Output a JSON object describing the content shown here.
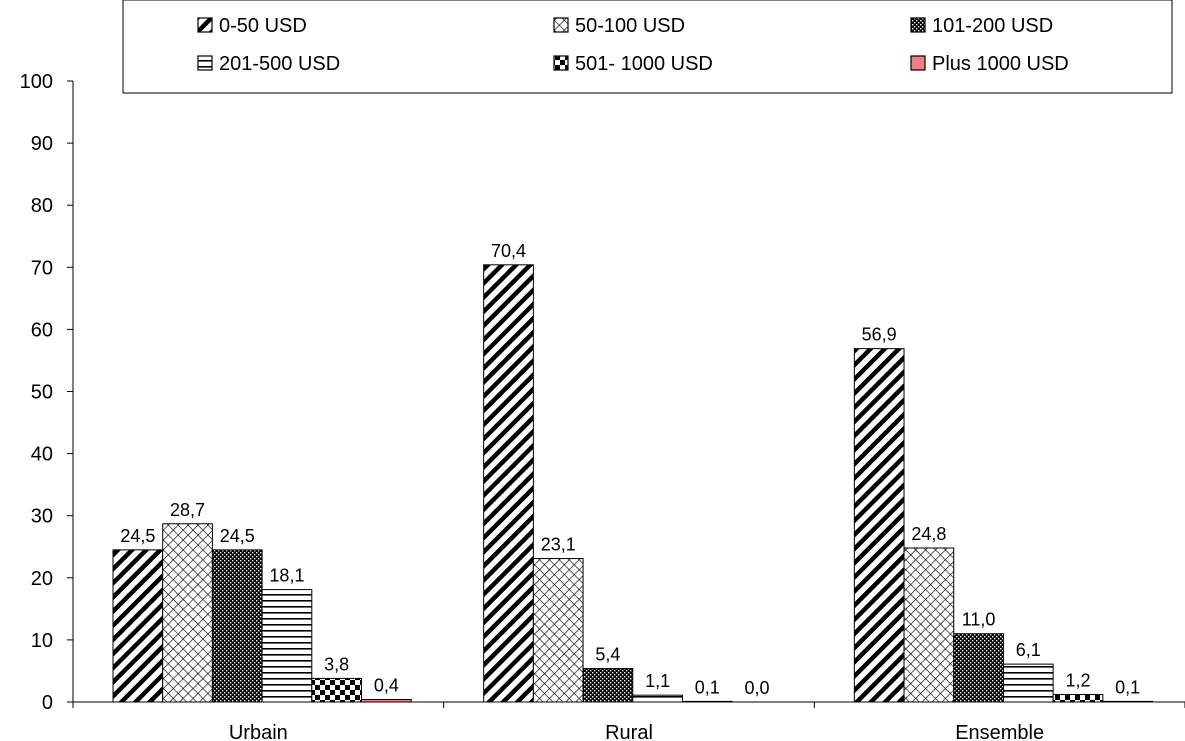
{
  "chart_data": {
    "type": "bar",
    "title": "",
    "xlabel": "",
    "ylabel": "",
    "ylim": [
      0,
      100
    ],
    "yticks": [
      0,
      10,
      20,
      30,
      40,
      50,
      60,
      70,
      80,
      90,
      100
    ],
    "grid": false,
    "legend_position": "top",
    "categories": [
      "Urbain",
      "Rural",
      "Ensemble"
    ],
    "series": [
      {
        "name": "0-50 USD",
        "pattern": "diagonal-hatch",
        "color": "#000000",
        "values": [
          24.5,
          70.4,
          56.9
        ],
        "labels": [
          "24,5",
          "70,4",
          "56,9"
        ]
      },
      {
        "name": "50-100 USD",
        "pattern": "crosshatch",
        "color": "#000000",
        "values": [
          28.7,
          23.1,
          24.8
        ],
        "labels": [
          "28,7",
          "23,1",
          "24,8"
        ]
      },
      {
        "name": "101-200 USD",
        "pattern": "dense-dots",
        "color": "#000000",
        "values": [
          24.5,
          5.4,
          11.0
        ],
        "labels": [
          "24,5",
          "5,4",
          "11,0"
        ]
      },
      {
        "name": "201-500 USD",
        "pattern": "horizontal-lines",
        "color": "#000000",
        "values": [
          18.1,
          1.1,
          6.1
        ],
        "labels": [
          "18,1",
          "1,1",
          "6,1"
        ]
      },
      {
        "name": "501- 1000 USD",
        "pattern": "checkerboard",
        "color": "#000000",
        "values": [
          3.8,
          0.1,
          1.2
        ],
        "labels": [
          "3,8",
          "0,1",
          "1,2"
        ]
      },
      {
        "name": "Plus 1000 USD",
        "pattern": "solid",
        "color": "#f08080",
        "values": [
          0.4,
          0.0,
          0.1
        ],
        "labels": [
          "0,4",
          "0,0",
          "0,1"
        ]
      }
    ]
  }
}
